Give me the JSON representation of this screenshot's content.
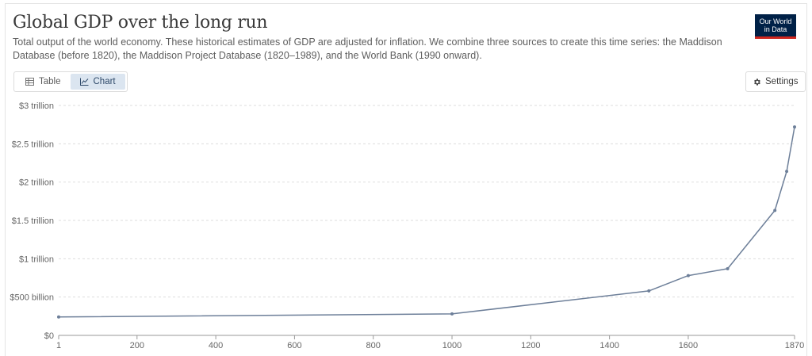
{
  "header": {
    "title": "Global GDP over the long run",
    "subtitle": "Total output of the world economy. These historical estimates of GDP are adjusted for inflation. We combine three sources to create this time series: the Maddison Database (before 1820), the Maddison Project Database (1820–1989), and the World Bank (1990 onward).",
    "logo_line1": "Our World",
    "logo_line2": "in Data"
  },
  "controls": {
    "table_label": "Table",
    "chart_label": "Chart",
    "settings_label": "Settings",
    "active_tab": "chart"
  },
  "colors": {
    "series": "#6d7f99",
    "grid": "#dddddd",
    "axis": "#999999",
    "accent_bg": "#dbe5f0",
    "logo_bg": "#002147",
    "logo_bar": "#ce261e"
  },
  "chart_data": {
    "type": "line",
    "title": "Global GDP over the long run",
    "xlabel": "",
    "ylabel": "",
    "xlim": [
      1,
      1870
    ],
    "ylim": [
      0,
      3000000000000
    ],
    "grid": "horizontal dashed",
    "y_ticks": [
      {
        "value": 0,
        "label": "$0"
      },
      {
        "value": 500000000000,
        "label": "$500 billion"
      },
      {
        "value": 1000000000000,
        "label": "$1 trillion"
      },
      {
        "value": 1500000000000,
        "label": "$1.5 trillion"
      },
      {
        "value": 2000000000000,
        "label": "$2 trillion"
      },
      {
        "value": 2500000000000,
        "label": "$2.5 trillion"
      },
      {
        "value": 3000000000000,
        "label": "$3 trillion"
      }
    ],
    "x_ticks": [
      {
        "value": 1,
        "label": "1"
      },
      {
        "value": 200,
        "label": "200"
      },
      {
        "value": 400,
        "label": "400"
      },
      {
        "value": 600,
        "label": "600"
      },
      {
        "value": 800,
        "label": "800"
      },
      {
        "value": 1000,
        "label": "1000"
      },
      {
        "value": 1200,
        "label": "1200"
      },
      {
        "value": 1400,
        "label": "1400"
      },
      {
        "value": 1600,
        "label": "1600"
      },
      {
        "value": 1870,
        "label": "1870"
      }
    ],
    "series": [
      {
        "points": [
          {
            "x": 1,
            "y": 240000000000
          },
          {
            "x": 1000,
            "y": 280000000000
          },
          {
            "x": 1500,
            "y": 580000000000
          },
          {
            "x": 1600,
            "y": 780000000000
          },
          {
            "x": 1700,
            "y": 870000000000
          },
          {
            "x": 1820,
            "y": 1630000000000
          },
          {
            "x": 1850,
            "y": 2140000000000
          },
          {
            "x": 1870,
            "y": 2720000000000
          }
        ]
      }
    ]
  }
}
